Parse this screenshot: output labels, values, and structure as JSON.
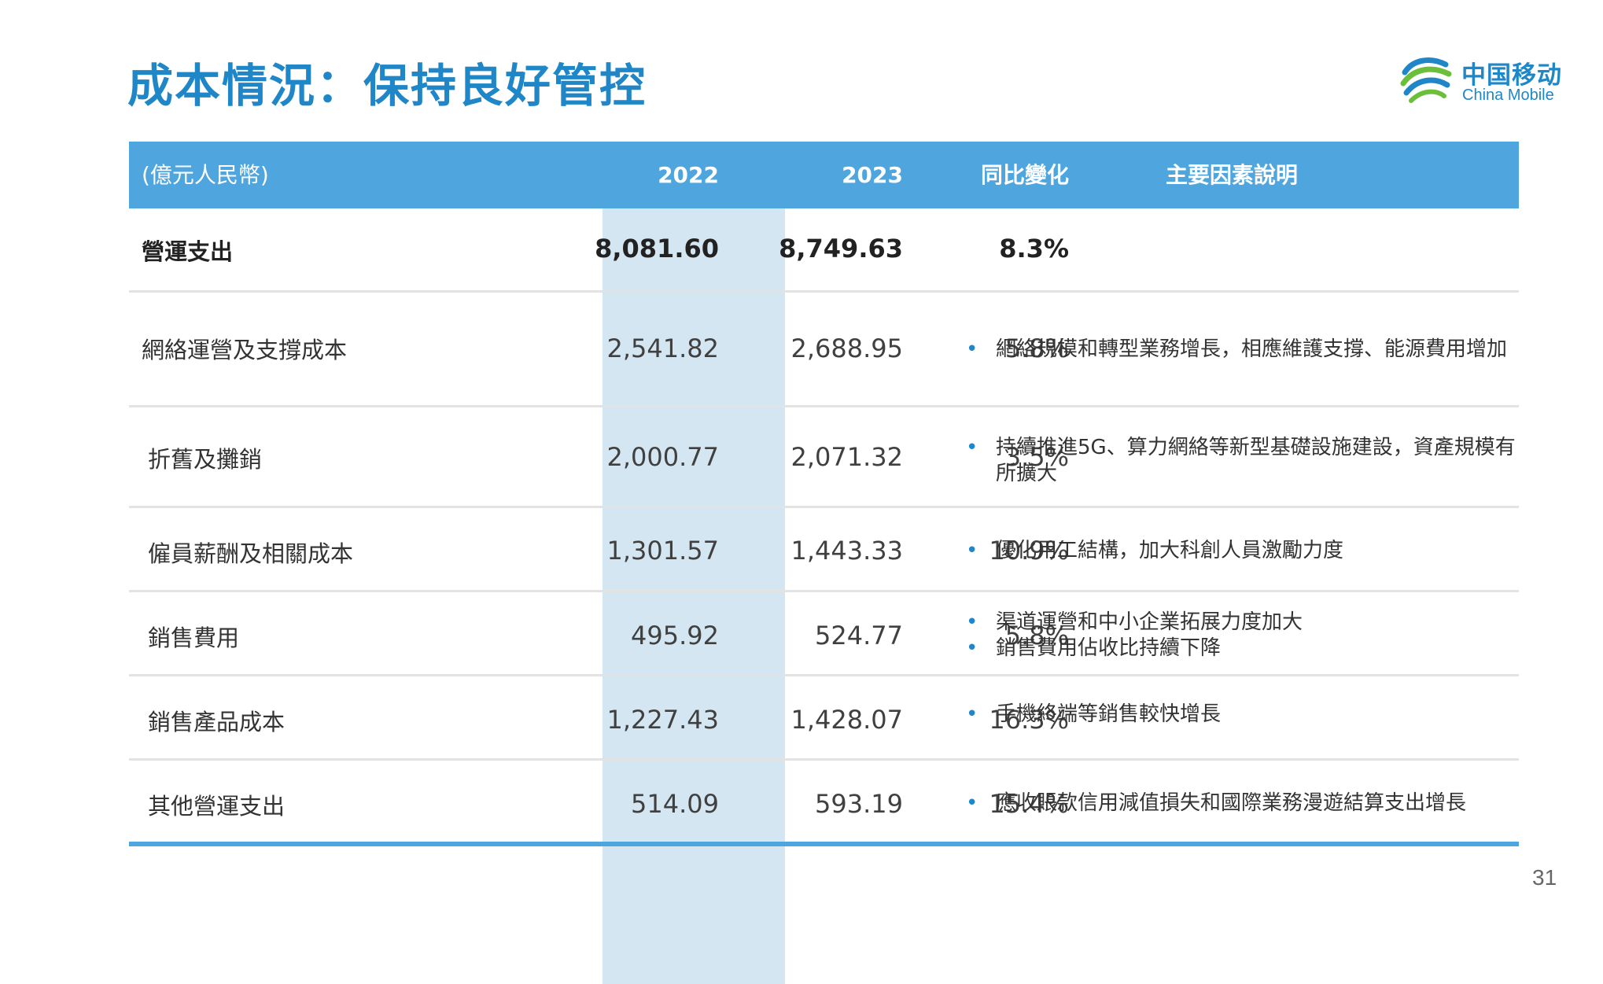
{
  "slide": {
    "title": "成本情況：保持良好管控",
    "page_number": "31"
  },
  "logo": {
    "name_cn": "中国移动",
    "name_en": "China Mobile",
    "brand_color": "#1f87c8"
  },
  "colors": {
    "header_bg": "#4fa5dd",
    "highlight_column": "#d4e6f2",
    "title": "#1f87c8"
  },
  "table": {
    "headers": {
      "unit": "(億元人民幣)",
      "y2022": "2022",
      "y2023": "2023",
      "yoy": "同比變化",
      "factors": "主要因素說明"
    },
    "rows": [
      {
        "label": "營運支出",
        "y2022": "8,081.60",
        "y2023": "8,749.63",
        "yoy": "8.3%",
        "factors": []
      },
      {
        "label": "網絡運營及支撐成本",
        "y2022": "2,541.82",
        "y2023": "2,688.95",
        "yoy": "5.8%",
        "factors": [
          "網絡規模和轉型業務增長，相應維護支撐、能源費用增加"
        ]
      },
      {
        "label": "折舊及攤銷",
        "y2022": "2,000.77",
        "y2023": "2,071.32",
        "yoy": "3.5%",
        "factors": [
          "持續推進5G、算力網絡等新型基礎設施建設，資產規模有",
          "所擴大"
        ]
      },
      {
        "label": "僱員薪酬及相關成本",
        "y2022": "1,301.57",
        "y2023": "1,443.33",
        "yoy": "10.9%",
        "factors": [
          "優化用工結構，加大科創人員激勵力度"
        ]
      },
      {
        "label": "銷售費用",
        "y2022": "495.92",
        "y2023": "524.77",
        "yoy": "5.8%",
        "factors": [
          "渠道運營和中小企業拓展力度加大",
          "銷售費用佔收比持續下降"
        ]
      },
      {
        "label": "銷售產品成本",
        "y2022": "1,227.43",
        "y2023": "1,428.07",
        "yoy": "16.3%",
        "factors": [
          "手機終端等銷售較快增長"
        ]
      },
      {
        "label": "其他營運支出",
        "y2022": "514.09",
        "y2023": "593.19",
        "yoy": "15.4%",
        "factors": [
          "應收賬款信用減值損失和國際業務漫遊結算支出增長"
        ]
      }
    ]
  }
}
